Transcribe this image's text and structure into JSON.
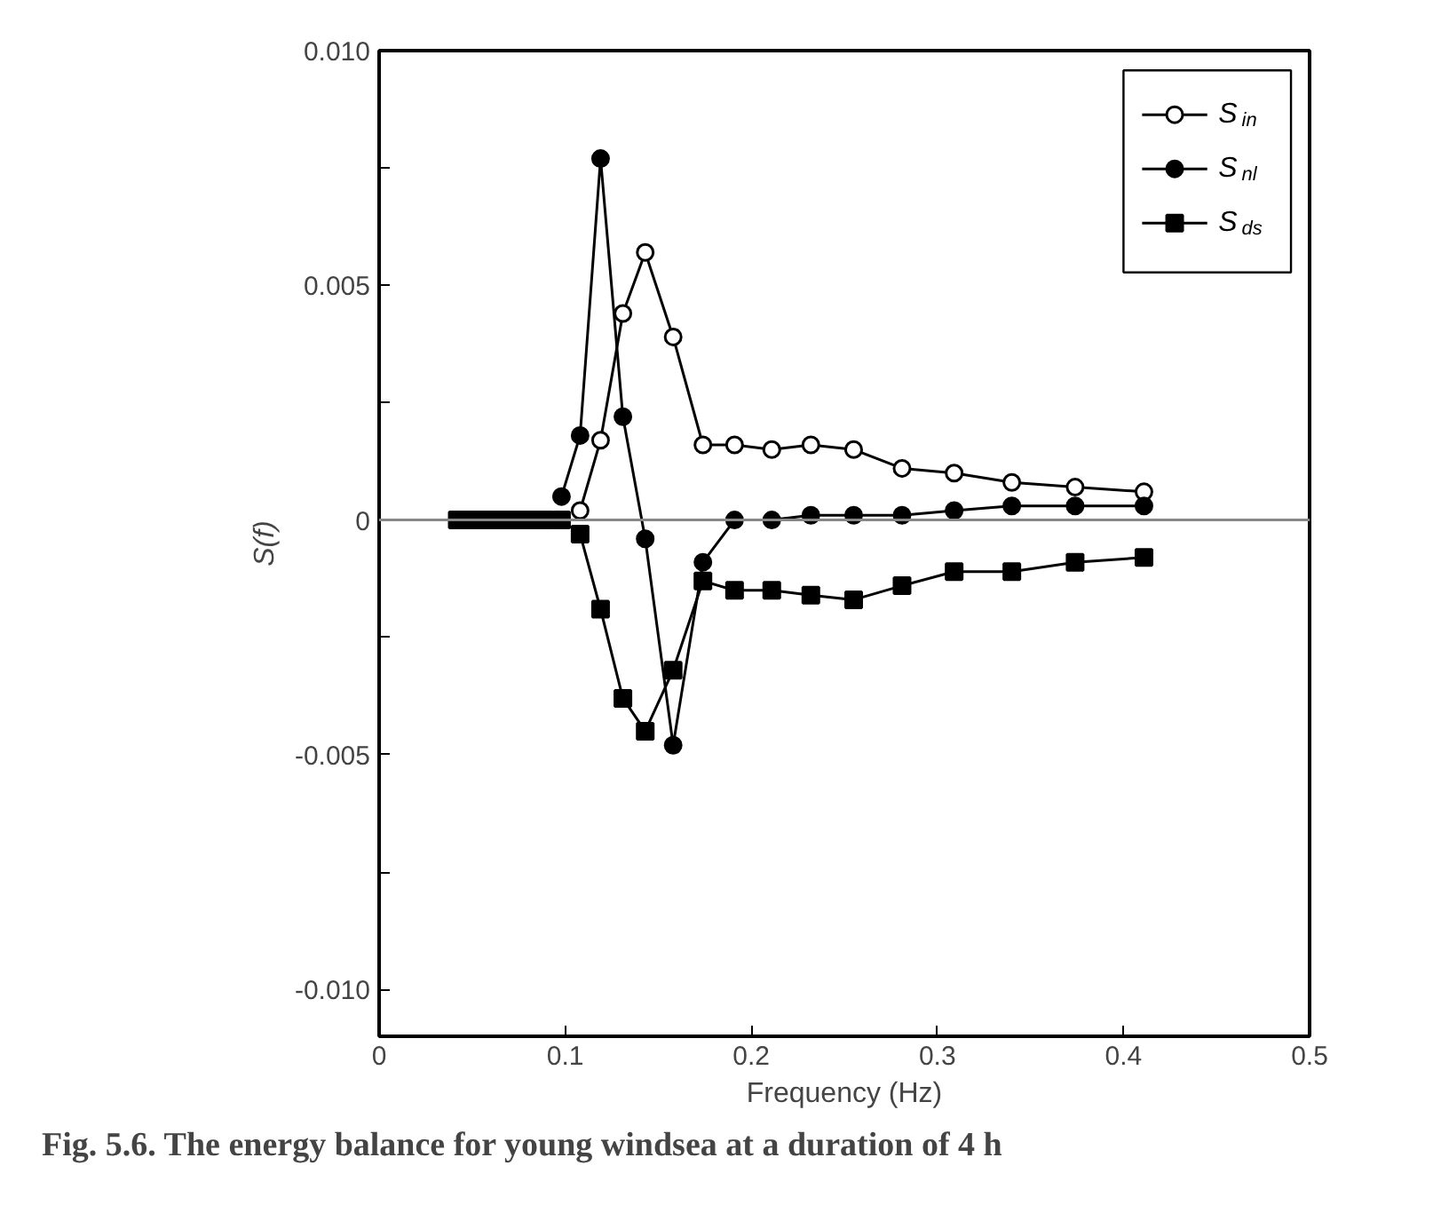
{
  "chart_data": {
    "type": "line",
    "x": [
      0.042,
      0.046,
      0.05,
      0.055,
      0.061,
      0.067,
      0.074,
      0.081,
      0.089,
      0.098,
      0.108,
      0.119,
      0.131,
      0.143,
      0.158,
      0.174,
      0.191,
      0.211,
      0.232,
      0.255,
      0.281,
      0.309,
      0.34,
      0.374,
      0.411
    ],
    "series": [
      {
        "name": "S$_{in}$",
        "color": "#ffffff",
        "marker": "circle",
        "values": [
          null,
          null,
          null,
          null,
          null,
          null,
          null,
          null,
          null,
          null,
          0.0002,
          0.0017,
          0.0044,
          0.0057,
          0.0039,
          0.0016,
          0.0016,
          0.0015,
          0.0016,
          0.0015,
          0.0011,
          0.001,
          0.0008,
          0.0007,
          0.0006
        ]
      },
      {
        "name": "S$_{nl}$",
        "color": "#000000",
        "marker": "circle",
        "values": [
          null,
          null,
          null,
          null,
          null,
          null,
          null,
          null,
          null,
          0.0005,
          0.0018,
          0.0077,
          0.0022,
          -0.0004,
          -0.0048,
          -0.0009,
          0,
          0,
          0.0001,
          0.0001,
          0.0001,
          0.0002,
          0.0003,
          0.0003,
          0.0003
        ]
      },
      {
        "name": "S$_{ds}$",
        "color": "#000000",
        "marker": "square",
        "values": [
          0,
          0,
          0,
          0,
          0,
          0,
          0,
          0,
          0,
          0,
          -0.0003,
          -0.0019,
          -0.0038,
          -0.0045,
          -0.0032,
          -0.0013,
          -0.0015,
          -0.0015,
          -0.0016,
          -0.0017,
          -0.0014,
          -0.0011,
          -0.0011,
          -0.0009,
          -0.0008
        ]
      }
    ],
    "xlabel": "Frequency (Hz)",
    "ylabel": "S(f)",
    "xlim": [
      0,
      0.5
    ],
    "xticks": [
      0,
      0.1,
      0.2,
      0.3,
      0.4,
      0.5
    ],
    "ylim": [
      -0.011,
      0.01
    ],
    "yticks": [
      {
        "value": -0.01,
        "label": "-0.010"
      },
      {
        "value": -0.0075,
        "label": null
      },
      {
        "value": -0.005,
        "label": "-0.005"
      },
      {
        "value": -0.0025,
        "label": null
      },
      0,
      {
        "value": 0.0025,
        "label": null
      },
      {
        "value": 0.005,
        "label": "0.005"
      },
      {
        "value": 0.0075,
        "label": null
      },
      {
        "value": 0.01,
        "label": "0.010"
      }
    ],
    "ref_lines": [
      {
        "axis": "y",
        "value": 0,
        "color": "#888888"
      }
    ],
    "legend": "top right",
    "grid": false,
    "line_style": "solid",
    "annotations": [
      "Fig. 5.6. The energy balance for young windsea at a duration of 4 h"
    ]
  }
}
